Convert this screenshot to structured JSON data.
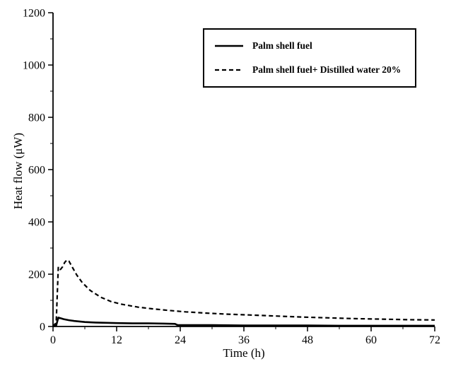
{
  "chart_data": {
    "type": "line",
    "xlabel": "Time (h)",
    "ylabel": "Heat flow (μW)",
    "xlim": [
      0,
      72
    ],
    "ylim": [
      0,
      1200
    ],
    "xticks": [
      0,
      12,
      24,
      36,
      48,
      60,
      72
    ],
    "yticks": [
      0,
      200,
      400,
      600,
      800,
      1000,
      1200
    ],
    "x_minor_step": 6,
    "y_minor_step": 100,
    "grid": false,
    "legend_position": "top-center",
    "line_color": "#000000",
    "series": [
      {
        "name": "Palm shell fuel",
        "style": "solid",
        "x": [
          0,
          0.6,
          1.0,
          1.5,
          2,
          3,
          4,
          6,
          8,
          10,
          12,
          15,
          18,
          21,
          23,
          23.5,
          26,
          30,
          36,
          42,
          48,
          54,
          60,
          66,
          72
        ],
        "y": [
          0,
          4,
          34,
          31,
          28,
          24,
          21,
          17,
          15,
          14,
          13,
          12,
          12,
          11,
          10,
          5,
          5,
          5,
          4,
          4,
          4,
          3,
          3,
          3,
          3
        ]
      },
      {
        "name": "Palm shell fuel+ Distilled water 20%",
        "style": "dashed",
        "x": [
          0,
          0.6,
          1.0,
          1.4,
          1.8,
          2.2,
          2.6,
          3.0,
          3.6,
          4.5,
          5.5,
          7,
          9,
          11,
          13,
          16,
          19,
          22,
          25,
          29,
          33,
          37,
          42,
          47,
          52,
          57,
          62,
          67,
          72
        ],
        "y": [
          0,
          15,
          228,
          218,
          228,
          245,
          254,
          250,
          228,
          196,
          168,
          138,
          112,
          95,
          85,
          74,
          67,
          61,
          56,
          51,
          47,
          44,
          40,
          36,
          33,
          30,
          28,
          26,
          25
        ]
      }
    ]
  }
}
